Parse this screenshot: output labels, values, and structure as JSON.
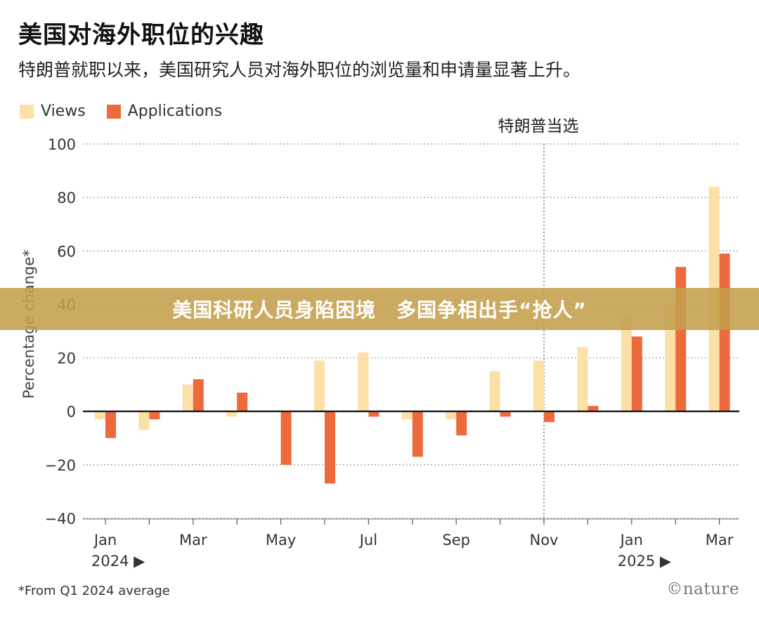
{
  "header": {
    "title": "美国对海外职位的兴趣",
    "subtitle": "特朗普就职以来，美国研究人员对海外职位的浏览量和申请量显著上升。"
  },
  "banner": {
    "text": "美国科研人员身陷困境　多国争相出手“抢人”"
  },
  "footnote": "*From Q1 2024 average",
  "logo": "©nature",
  "colors": {
    "views": "#fde0a8",
    "applications": "#ec6a3b",
    "axis": "#222222",
    "grid": "#999999",
    "banner": "#c49e4c"
  },
  "chart_data": {
    "type": "bar",
    "ylabel": "Percentage change*",
    "ylim": [
      -40,
      100
    ],
    "yticks": [
      100,
      80,
      60,
      40,
      20,
      0,
      -20,
      -40
    ],
    "ytick_labels": [
      "100",
      "80",
      "60",
      "40",
      "20",
      "0",
      "−20",
      "−40"
    ],
    "grid": true,
    "legend_position": "top-left",
    "categories": [
      "Jan 2024",
      "Feb 2024",
      "Mar 2024",
      "Apr 2024",
      "May 2024",
      "Jun 2024",
      "Jul 2024",
      "Aug 2024",
      "Sep 2024",
      "Oct 2024",
      "Nov 2024",
      "Dec 2024",
      "Jan 2025",
      "Feb 2025",
      "Mar 2025"
    ],
    "tick_labels": [
      "Jan",
      "",
      "Mar",
      "",
      "May",
      "",
      "Jul",
      "",
      "Sep",
      "",
      "Nov",
      "",
      "Jan",
      "",
      "Mar"
    ],
    "year_labels": [
      {
        "index": 0,
        "label": "2024 ▶"
      },
      {
        "index": 12,
        "label": "2025 ▶"
      }
    ],
    "series": [
      {
        "name": "Views",
        "values": [
          -3,
          -7,
          10,
          -2,
          0,
          19,
          22,
          -3,
          -3,
          15,
          19,
          24,
          35,
          40,
          84
        ]
      },
      {
        "name": "Applications",
        "values": [
          -10,
          -3,
          12,
          7,
          -20,
          -27,
          -2,
          -17,
          -9,
          -2,
          -4,
          2,
          28,
          54,
          59
        ]
      }
    ],
    "annotation": {
      "label": "特朗普当选",
      "index": 10
    }
  }
}
